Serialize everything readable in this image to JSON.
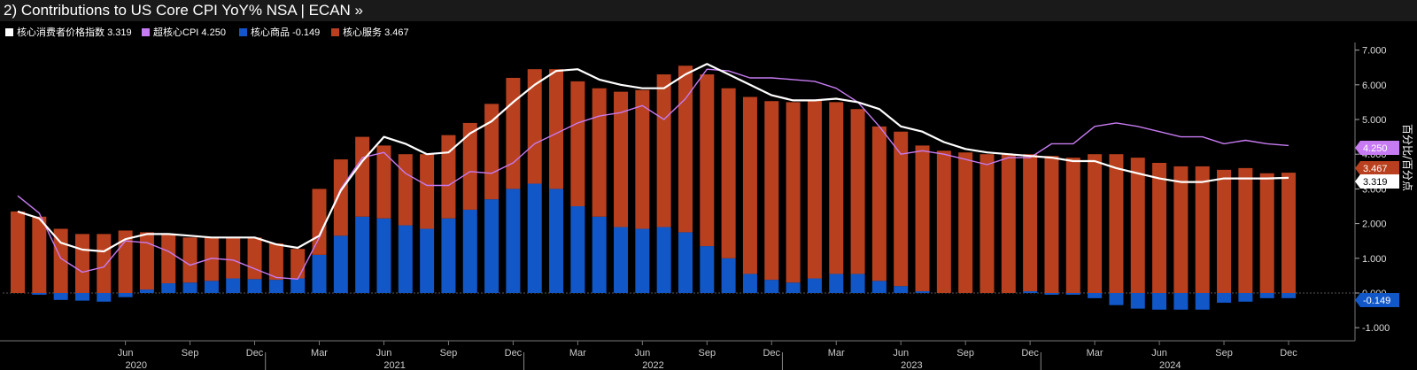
{
  "header": {
    "title": "2) Contributions to US Core CPI YoY% NSA | ECAN »"
  },
  "legend": [
    {
      "label": "核心消费者价格指数",
      "value": "3.319",
      "color": "#ffffff"
    },
    {
      "label": "超核心CPI",
      "value": "4.250",
      "color": "#c77bf2"
    },
    {
      "label": "核心商品",
      "value": "-0.149",
      "color": "#1157c8"
    },
    {
      "label": "核心服务",
      "value": "3.467",
      "color": "#b8401e"
    }
  ],
  "chart_data": {
    "type": "bar",
    "title": "Contributions to US Core CPI YoY% NSA",
    "ylabel": "百分比/百分点",
    "ylim": [
      -1,
      7
    ],
    "yticks": [
      "7.000",
      "6.000",
      "5.000",
      "4.000",
      "3.000",
      "2.000",
      "1.000",
      "0.000",
      "-1.000"
    ],
    "month_labels": [
      "Jun",
      "Sep",
      "Dec",
      "Mar",
      "Jun",
      "Sep",
      "Dec",
      "Mar",
      "Jun",
      "Sep",
      "Dec",
      "Mar",
      "Jun",
      "Sep",
      "Dec",
      "Mar",
      "Jun",
      "Sep",
      "Dec"
    ],
    "year_labels": [
      "2020",
      "2021",
      "2022",
      "2023",
      "2024"
    ],
    "x": [
      "2020-01",
      "2020-02",
      "2020-03",
      "2020-04",
      "2020-05",
      "2020-06",
      "2020-07",
      "2020-08",
      "2020-09",
      "2020-10",
      "2020-11",
      "2020-12",
      "2021-01",
      "2021-02",
      "2021-03",
      "2021-04",
      "2021-05",
      "2021-06",
      "2021-07",
      "2021-08",
      "2021-09",
      "2021-10",
      "2021-11",
      "2021-12",
      "2022-01",
      "2022-02",
      "2022-03",
      "2022-04",
      "2022-05",
      "2022-06",
      "2022-07",
      "2022-08",
      "2022-09",
      "2022-10",
      "2022-11",
      "2022-12",
      "2023-01",
      "2023-02",
      "2023-03",
      "2023-04",
      "2023-05",
      "2023-06",
      "2023-07",
      "2023-08",
      "2023-09",
      "2023-10",
      "2023-11",
      "2023-12",
      "2024-01",
      "2024-02",
      "2024-03",
      "2024-04",
      "2024-05",
      "2024-06",
      "2024-07",
      "2024-08",
      "2024-09",
      "2024-10",
      "2024-11",
      "2024-12"
    ],
    "stack_series": [
      {
        "name": "核心商品",
        "color": "#1157c8",
        "values": [
          0.0,
          -0.05,
          -0.2,
          -0.22,
          -0.25,
          -0.12,
          0.1,
          0.28,
          0.3,
          0.35,
          0.42,
          0.4,
          0.38,
          0.42,
          1.1,
          1.65,
          2.2,
          2.15,
          1.95,
          1.85,
          2.15,
          2.4,
          2.7,
          3.0,
          3.15,
          3.0,
          2.5,
          2.2,
          1.9,
          1.85,
          1.9,
          1.75,
          1.35,
          1.0,
          0.55,
          0.38,
          0.3,
          0.42,
          0.55,
          0.55,
          0.35,
          0.2,
          0.05,
          0.0,
          0.0,
          0.0,
          0.0,
          0.05,
          -0.05,
          -0.05,
          -0.15,
          -0.35,
          -0.45,
          -0.48,
          -0.48,
          -0.48,
          -0.28,
          -0.25,
          -0.15,
          -0.149
        ]
      },
      {
        "name": "核心服务",
        "color": "#b8401e",
        "values": [
          2.35,
          2.2,
          1.85,
          1.7,
          1.7,
          1.8,
          1.65,
          1.4,
          1.3,
          1.25,
          1.2,
          1.2,
          1.05,
          0.85,
          1.9,
          2.2,
          2.3,
          2.1,
          2.05,
          2.15,
          2.4,
          2.5,
          2.75,
          3.2,
          3.3,
          3.45,
          3.6,
          3.7,
          3.9,
          4.0,
          4.4,
          4.8,
          4.95,
          4.9,
          5.1,
          5.15,
          5.2,
          5.15,
          4.95,
          4.75,
          4.45,
          4.45,
          4.2,
          4.1,
          4.05,
          4.0,
          4.0,
          3.95,
          3.95,
          3.9,
          4.0,
          4.0,
          3.9,
          3.75,
          3.65,
          3.65,
          3.55,
          3.6,
          3.45,
          3.467
        ]
      }
    ],
    "line_series": [
      {
        "name": "核心消费者价格指数",
        "color": "#ffffff",
        "values": [
          2.35,
          2.15,
          1.45,
          1.25,
          1.2,
          1.55,
          1.7,
          1.7,
          1.65,
          1.6,
          1.6,
          1.6,
          1.4,
          1.3,
          1.65,
          2.95,
          3.8,
          4.5,
          4.3,
          4.0,
          4.05,
          4.6,
          4.95,
          5.5,
          6.0,
          6.4,
          6.45,
          6.15,
          6.0,
          5.9,
          5.9,
          6.3,
          6.6,
          6.3,
          6.0,
          5.7,
          5.55,
          5.55,
          5.6,
          5.5,
          5.3,
          4.8,
          4.65,
          4.35,
          4.15,
          4.05,
          4.0,
          3.95,
          3.9,
          3.8,
          3.8,
          3.6,
          3.45,
          3.3,
          3.2,
          3.2,
          3.3,
          3.3,
          3.3,
          3.319
        ]
      },
      {
        "name": "超核心CPI",
        "color": "#c77bf2",
        "values": [
          2.8,
          2.3,
          1.0,
          0.6,
          0.75,
          1.5,
          1.45,
          1.2,
          0.8,
          1.0,
          0.95,
          0.7,
          0.45,
          0.4,
          1.6,
          3.0,
          3.9,
          4.05,
          3.45,
          3.1,
          3.1,
          3.5,
          3.45,
          3.75,
          4.3,
          4.6,
          4.9,
          5.1,
          5.2,
          5.4,
          5.0,
          5.6,
          6.45,
          6.4,
          6.2,
          6.2,
          6.15,
          6.1,
          5.9,
          5.5,
          4.8,
          4.0,
          4.1,
          4.0,
          3.85,
          3.7,
          3.9,
          3.9,
          4.3,
          4.3,
          4.8,
          4.9,
          4.8,
          4.65,
          4.5,
          4.5,
          4.3,
          4.4,
          4.3,
          4.25
        ]
      }
    ],
    "right_tags": [
      {
        "series": "超核心CPI",
        "text": "4.250",
        "value": 4.25,
        "bg": "#c77bf2",
        "fg": "#ffffff"
      },
      {
        "series": "核心服务",
        "text": "3.467",
        "value": 3.467,
        "bg": "#b8401e",
        "fg": "#ffffff"
      },
      {
        "series": "核心消费者价格指数",
        "text": "3.319",
        "value": 3.319,
        "bg": "#ffffff",
        "fg": "#000000"
      },
      {
        "series": "核心商品",
        "text": "-0.149",
        "value": -0.149,
        "bg": "#1157c8",
        "fg": "#ffffff"
      }
    ]
  }
}
